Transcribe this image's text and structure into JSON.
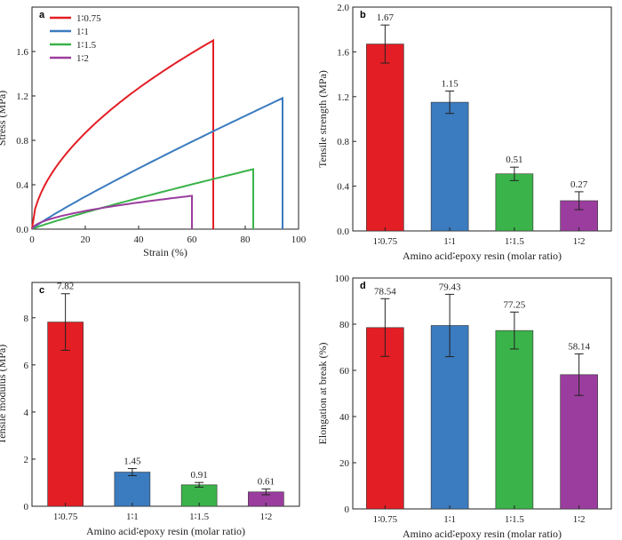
{
  "colors": {
    "red": "#e31e24",
    "blue": "#3b7bbf",
    "green": "#3ab34a",
    "purple": "#9b3d9e",
    "axis": "#222222",
    "errorbar": "#222222"
  },
  "chart_data": [
    {
      "panel": "a",
      "type": "line",
      "xlabel": "Strain (%)",
      "ylabel": "Stress (MPa)",
      "xlim": [
        0,
        100
      ],
      "ylim": [
        0,
        2.0
      ],
      "xticks": [
        "0",
        "20",
        "40",
        "60",
        "80",
        "100"
      ],
      "yticks": [
        "0.0",
        "0.4",
        "0.8",
        "1.2",
        "1.6"
      ],
      "legend_position": "top-left",
      "series": [
        {
          "name": "1∶0.75",
          "color": "#e31e24",
          "shape": "concave",
          "x_break": 68,
          "y_max": 1.7
        },
        {
          "name": "1∶1",
          "color": "#3b7bbf",
          "shape": "linear",
          "x_break": 94,
          "y_max": 1.18
        },
        {
          "name": "1∶1.5",
          "color": "#3ab34a",
          "shape": "linear",
          "x_break": 83,
          "y_max": 0.54
        },
        {
          "name": "1∶2",
          "color": "#9b3d9e",
          "shape": "concave",
          "x_break": 60,
          "y_max": 0.3
        }
      ]
    },
    {
      "panel": "b",
      "type": "bar",
      "xlabel": "Amino acid∶epoxy resin (molar ratio)",
      "ylabel": "Tensile strength (MPa)",
      "ylim": [
        0,
        2.0
      ],
      "yticks": [
        "0.0",
        "0.4",
        "0.8",
        "1.2",
        "1.6",
        "2.0"
      ],
      "categories": [
        "1∶0.75",
        "1∶1",
        "1∶1.5",
        "1∶2"
      ],
      "values": [
        1.67,
        1.15,
        0.51,
        0.27
      ],
      "value_labels": [
        "1.67",
        "1.15",
        "0.51",
        "0.27"
      ],
      "errors": [
        0.17,
        0.1,
        0.06,
        0.08
      ],
      "colors": [
        "#e31e24",
        "#3b7bbf",
        "#3ab34a",
        "#9b3d9e"
      ]
    },
    {
      "panel": "c",
      "type": "bar",
      "xlabel": "Amino acid∶epoxy resin (molar ratio)",
      "ylabel": "Tensile modulus (MPa)",
      "ylim": [
        0,
        9.5
      ],
      "yticks": [
        "0",
        "2",
        "4",
        "6",
        "8"
      ],
      "categories": [
        "1∶0.75",
        "1∶1",
        "1∶1.5",
        "1∶2"
      ],
      "values": [
        7.82,
        1.45,
        0.91,
        0.61
      ],
      "value_labels": [
        "7.82",
        "1.45",
        "0.91",
        "0.61"
      ],
      "errors": [
        1.2,
        0.15,
        0.1,
        0.12
      ],
      "colors": [
        "#e31e24",
        "#3b7bbf",
        "#3ab34a",
        "#9b3d9e"
      ]
    },
    {
      "panel": "d",
      "type": "bar",
      "xlabel": "Amino acid∶epoxy resin (molar ratio)",
      "ylabel": "Elongation at break (%)",
      "ylim": [
        0,
        100
      ],
      "yticks": [
        "0",
        "20",
        "40",
        "60",
        "80",
        "100"
      ],
      "categories": [
        "1∶0.75",
        "1∶1",
        "1∶1.5",
        "1∶2"
      ],
      "values": [
        78.54,
        79.43,
        77.25,
        58.14
      ],
      "value_labels": [
        "78.54",
        "79.43",
        "77.25",
        "58.14"
      ],
      "errors": [
        12.5,
        13.5,
        8.0,
        9.0
      ],
      "colors": [
        "#e31e24",
        "#3b7bbf",
        "#3ab34a",
        "#9b3d9e"
      ]
    }
  ]
}
